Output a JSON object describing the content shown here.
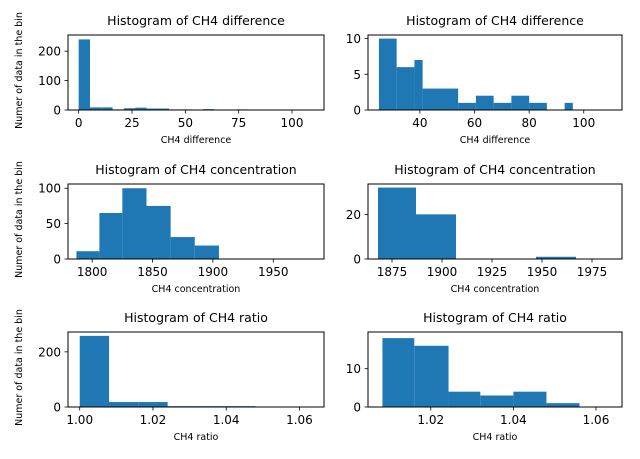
{
  "chart_data": [
    {
      "type": "bar",
      "title": "Histogram of CH4 difference",
      "xlabel": "CH4 difference",
      "ylabel": "Numer of data in the bin",
      "xlim": [
        -5,
        115
      ],
      "ylim": [
        0,
        255
      ],
      "xticks": [
        0,
        25,
        50,
        75,
        100
      ],
      "yticks": [
        0,
        100,
        200
      ],
      "color": "#1f77b4",
      "bins": [
        {
          "x0": 0.0,
          "x1": 5.3,
          "count": 240
        },
        {
          "x0": 5.3,
          "x1": 10.6,
          "count": 9
        },
        {
          "x0": 10.6,
          "x1": 15.9,
          "count": 9
        },
        {
          "x0": 15.9,
          "x1": 21.2,
          "count": 2
        },
        {
          "x0": 21.2,
          "x1": 26.5,
          "count": 6
        },
        {
          "x0": 26.5,
          "x1": 31.8,
          "count": 8
        },
        {
          "x0": 31.8,
          "x1": 37.1,
          "count": 5
        },
        {
          "x0": 37.1,
          "x1": 42.4,
          "count": 5
        },
        {
          "x0": 42.4,
          "x1": 47.7,
          "count": 2
        },
        {
          "x0": 47.7,
          "x1": 53.0,
          "count": 2
        },
        {
          "x0": 58.3,
          "x1": 63.6,
          "count": 3
        },
        {
          "x0": 74.2,
          "x1": 79.5,
          "count": 2
        }
      ]
    },
    {
      "type": "bar",
      "title": "Histogram of CH4 difference",
      "xlabel": "CH4 difference",
      "ylabel": "",
      "xlim": [
        21,
        114
      ],
      "ylim": [
        0,
        10.5
      ],
      "xticks": [
        40,
        60,
        80,
        100
      ],
      "yticks": [
        0,
        5,
        10
      ],
      "color": "#1f77b4",
      "bins": [
        {
          "x0": 25.0,
          "x1": 31.5,
          "count": 10
        },
        {
          "x0": 31.5,
          "x1": 38.0,
          "count": 6
        },
        {
          "x0": 38.0,
          "x1": 41.0,
          "count": 7
        },
        {
          "x0": 41.0,
          "x1": 54.0,
          "count": 3
        },
        {
          "x0": 54.0,
          "x1": 60.5,
          "count": 1
        },
        {
          "x0": 60.5,
          "x1": 67.0,
          "count": 2
        },
        {
          "x0": 67.0,
          "x1": 73.5,
          "count": 1
        },
        {
          "x0": 73.5,
          "x1": 80.0,
          "count": 2
        },
        {
          "x0": 80.0,
          "x1": 86.5,
          "count": 1
        },
        {
          "x0": 86.5,
          "x1": 93.0,
          "count": 0
        },
        {
          "x0": 93.0,
          "x1": 96.0,
          "count": 1
        }
      ]
    },
    {
      "type": "bar",
      "title": "Histogram of CH4 concentration",
      "xlabel": "CH4 concentration",
      "ylabel": "Numer of data in the bin",
      "xlim": [
        1780,
        1992
      ],
      "ylim": [
        0,
        106
      ],
      "xticks": [
        1800,
        1850,
        1900,
        1950
      ],
      "yticks": [
        0,
        50,
        100
      ],
      "color": "#1f77b4",
      "bins": [
        {
          "x0": 1787,
          "x1": 1806,
          "count": 11
        },
        {
          "x0": 1806,
          "x1": 1825,
          "count": 65
        },
        {
          "x0": 1825,
          "x1": 1845,
          "count": 100
        },
        {
          "x0": 1845,
          "x1": 1865,
          "count": 75
        },
        {
          "x0": 1865,
          "x1": 1885,
          "count": 31
        },
        {
          "x0": 1885,
          "x1": 1905,
          "count": 19
        }
      ]
    },
    {
      "type": "bar",
      "title": "Histogram of CH4 concentration",
      "xlabel": "CH4 concentration",
      "ylabel": "",
      "xlim": [
        1863,
        1990
      ],
      "ylim": [
        0,
        33.6
      ],
      "xticks": [
        1875,
        1900,
        1925,
        1950,
        1975
      ],
      "yticks": [
        0,
        20
      ],
      "color": "#1f77b4",
      "bins": [
        {
          "x0": 1868,
          "x1": 1887,
          "count": 32
        },
        {
          "x0": 1887,
          "x1": 1907,
          "count": 20
        },
        {
          "x0": 1947,
          "x1": 1967,
          "count": 1
        }
      ]
    },
    {
      "type": "bar",
      "title": "Histogram of CH4 ratio",
      "xlabel": "CH4 ratio",
      "ylabel": "Numer of data in the bin",
      "xlim": [
        0.9968,
        1.0667
      ],
      "ylim": [
        0,
        272
      ],
      "xticks": [
        1.0,
        1.02,
        1.04,
        1.06
      ],
      "tick_labels": [
        "1.00",
        "1.02",
        "1.04",
        "1.06"
      ],
      "yticks": [
        0,
        200
      ],
      "color": "#1f77b4",
      "bins": [
        {
          "x0": 1.0,
          "x1": 1.008,
          "count": 258
        },
        {
          "x0": 1.008,
          "x1": 1.016,
          "count": 18
        },
        {
          "x0": 1.016,
          "x1": 1.024,
          "count": 18
        },
        {
          "x0": 1.024,
          "x1": 1.032,
          "count": 3
        },
        {
          "x0": 1.032,
          "x1": 1.04,
          "count": 3
        },
        {
          "x0": 1.04,
          "x1": 1.048,
          "count": 3
        },
        {
          "x0": 1.056,
          "x1": 1.064,
          "count": 1
        }
      ]
    },
    {
      "type": "bar",
      "title": "Histogram of CH4 ratio",
      "xlabel": "CH4 ratio",
      "ylabel": "",
      "xlim": [
        1.0048,
        1.0663
      ],
      "ylim": [
        0,
        19.6
      ],
      "xticks": [
        1.02,
        1.04,
        1.06
      ],
      "tick_labels": [
        "1.02",
        "1.04",
        "1.06"
      ],
      "yticks": [
        0,
        10
      ],
      "color": "#1f77b4",
      "bins": [
        {
          "x0": 1.0083,
          "x1": 1.016,
          "count": 18
        },
        {
          "x0": 1.016,
          "x1": 1.0243,
          "count": 16
        },
        {
          "x0": 1.0243,
          "x1": 1.032,
          "count": 4
        },
        {
          "x0": 1.032,
          "x1": 1.04,
          "count": 3
        },
        {
          "x0": 1.04,
          "x1": 1.048,
          "count": 4
        },
        {
          "x0": 1.048,
          "x1": 1.056,
          "count": 1
        }
      ]
    }
  ]
}
